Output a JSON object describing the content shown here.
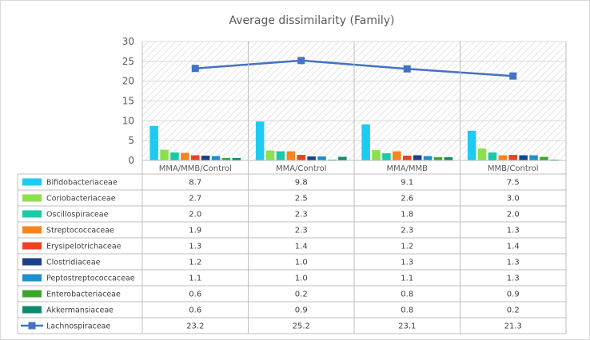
{
  "chart_data": {
    "type": "bar",
    "title": "Average dissimilarity (Family)",
    "categories": [
      "MMA/MMB/Control",
      "MMA/Control",
      "MMA/MMB",
      "MMB/Control"
    ],
    "ylim": [
      0,
      30
    ],
    "yticks": [
      0,
      5,
      10,
      15,
      20,
      25,
      30
    ],
    "grid": true,
    "legend_placement": "data-table",
    "series": [
      {
        "name": "Bifidobacteriaceae",
        "type": "bar",
        "color": "#1ECBF0",
        "values": [
          8.7,
          9.8,
          9.1,
          7.5
        ]
      },
      {
        "name": "Coriobacteriaceae",
        "type": "bar",
        "color": "#8CE04C",
        "values": [
          2.7,
          2.5,
          2.6,
          3.0
        ]
      },
      {
        "name": "Oscillospiraceae",
        "type": "bar",
        "color": "#19C9A8",
        "values": [
          2.0,
          2.3,
          1.8,
          2.0
        ]
      },
      {
        "name": "Streptococcaceae",
        "type": "bar",
        "color": "#F7841E",
        "values": [
          1.9,
          2.3,
          2.3,
          1.3
        ]
      },
      {
        "name": "Erysipelotrichaceae",
        "type": "bar",
        "color": "#EE4123",
        "values": [
          1.3,
          1.4,
          1.2,
          1.4
        ]
      },
      {
        "name": "Clostridiaceae",
        "type": "bar",
        "color": "#1B3F8B",
        "values": [
          1.2,
          1.0,
          1.3,
          1.3
        ]
      },
      {
        "name": "Peptostreptococcaceae",
        "type": "bar",
        "color": "#1D8FCB",
        "values": [
          1.1,
          1.0,
          1.1,
          1.3
        ]
      },
      {
        "name": "Enterobacteriaceae",
        "type": "bar",
        "color": "#3EA62B",
        "values": [
          0.6,
          0.2,
          0.8,
          0.9
        ]
      },
      {
        "name": "Akkermansiaceae",
        "type": "bar",
        "color": "#108A6E",
        "values": [
          0.6,
          0.9,
          0.8,
          0.2
        ]
      },
      {
        "name": "Lachnospiraceae",
        "type": "line",
        "color": "#4472C4",
        "values": [
          23.2,
          25.2,
          23.1,
          21.3
        ]
      }
    ]
  }
}
